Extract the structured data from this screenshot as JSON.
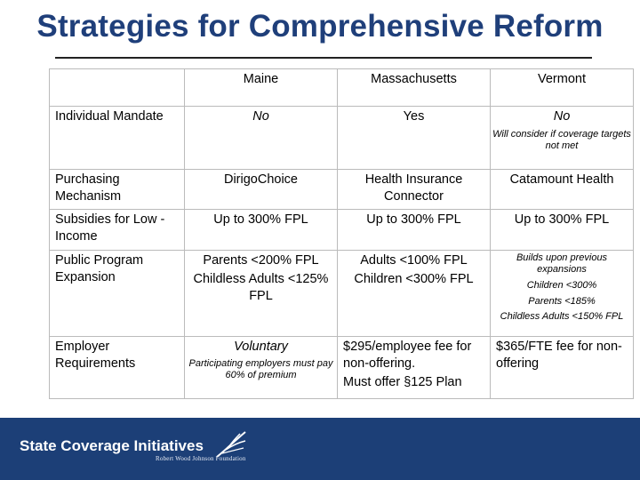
{
  "title": "Strategies for Comprehensive Reform",
  "columns": [
    "Maine",
    "Massachusetts",
    "Vermont"
  ],
  "rows": [
    {
      "label": "Individual Mandate",
      "maine": "No",
      "massachusetts": "Yes",
      "vermont": "No",
      "vermont_note": "Will consider if coverage targets not met"
    },
    {
      "label": "Purchasing Mechanism",
      "maine": "DirigoChoice",
      "massachusetts": "Health Insurance Connector",
      "vermont": "Catamount Health"
    },
    {
      "label": "Subsidies for Low -Income",
      "maine": "Up to 300% FPL",
      "massachusetts": "Up to 300% FPL",
      "vermont": "Up to 300% FPL"
    },
    {
      "label": "Public Program Expansion",
      "maine_1": "Parents <200% FPL",
      "maine_2": "Childless Adults <125% FPL",
      "massachusetts_1": "Adults <100% FPL",
      "massachusetts_2": "Children <300% FPL",
      "vermont_1": "Builds upon previous expansions",
      "vermont_2": "Children <300%",
      "vermont_3": "Parents <185%",
      "vermont_4": "Childless Adults <150% FPL"
    },
    {
      "label": "Employer Requirements",
      "maine": "Voluntary",
      "maine_note": "Participating employers must pay 60% of premium",
      "massachusetts_1": "$295/employee fee for non-offering.",
      "massachusetts_2": "Must offer §125 Plan",
      "vermont": "$365/FTE fee for non-offering"
    }
  ],
  "footer": {
    "title": "State Coverage Initiatives",
    "subtitle": "Robert Wood Johnson Foundation"
  }
}
